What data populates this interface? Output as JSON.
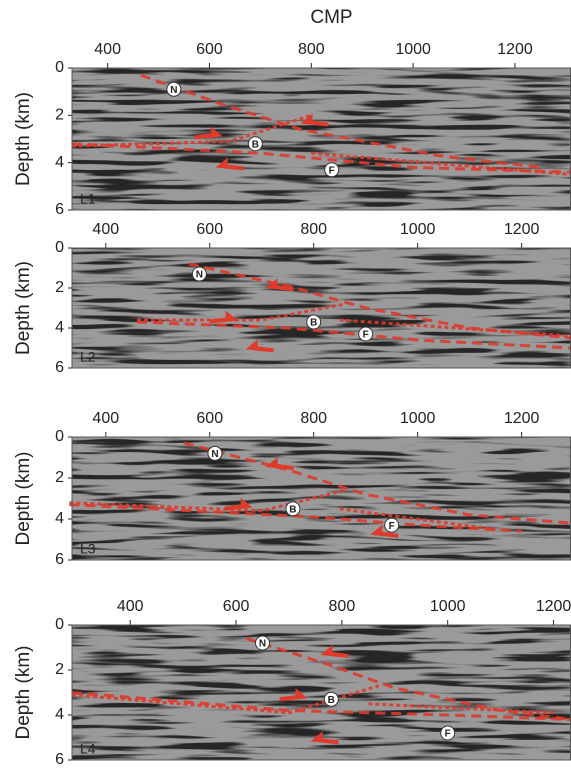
{
  "chart_data": [
    {
      "type": "seismic",
      "title": "CMP",
      "ylabel": "Depth (km)",
      "label": "L1",
      "xlim": [
        330,
        1310
      ],
      "xticks": [
        400,
        600,
        800,
        1000,
        1200
      ],
      "ylim": [
        0,
        6
      ],
      "yticks": [
        0,
        2,
        4,
        6
      ],
      "y_inverted": true,
      "series": [
        {
          "color": "#e03a2a",
          "x": [
            465,
            620,
            780,
            1050,
            1250
          ],
          "values": [
            0.3,
            1.5,
            2.6,
            3.7,
            4.2
          ]
        },
        {
          "color": "#e03a2a",
          "x": [
            330,
            640,
            800
          ],
          "values": [
            3.3,
            3.1,
            2.0
          ]
        },
        {
          "color": "#e03a2a",
          "x": [
            330,
            700,
            1000,
            1310
          ],
          "values": [
            3.2,
            3.6,
            4.2,
            4.4
          ]
        },
        {
          "color": "#e03a2a",
          "x": [
            800,
            1310
          ],
          "values": [
            3.6,
            4.5
          ]
        }
      ],
      "annotations": [
        {
          "text": "N",
          "x": 530,
          "y": 0.9
        },
        {
          "text": "B",
          "x": 690,
          "y": 3.2
        },
        {
          "text": "F",
          "x": 840,
          "y": 4.3
        }
      ]
    },
    {
      "type": "seismic",
      "ylabel": "Depth (km)",
      "label": "L2",
      "xlim": [
        335,
        1295
      ],
      "xticks": [
        400,
        600,
        800,
        1000,
        1200
      ],
      "ylim": [
        0,
        6
      ],
      "yticks": [
        0,
        2,
        4,
        6
      ],
      "y_inverted": true,
      "series": [
        {
          "color": "#e03a2a",
          "x": [
            560,
            750,
            900,
            1100,
            1295
          ],
          "values": [
            0.8,
            1.9,
            3.0,
            4.0,
            4.5
          ]
        },
        {
          "color": "#e03a2a",
          "x": [
            460,
            700,
            860
          ],
          "values": [
            3.6,
            3.6,
            2.8
          ]
        },
        {
          "color": "#e03a2a",
          "x": [
            460,
            750,
            1000,
            1295
          ],
          "values": [
            3.7,
            4.0,
            4.6,
            5.0
          ]
        },
        {
          "color": "#e03a2a",
          "x": [
            850,
            1295
          ],
          "values": [
            3.6,
            4.4
          ]
        }
      ],
      "annotations": [
        {
          "text": "N",
          "x": 580,
          "y": 1.3
        },
        {
          "text": "B",
          "x": 800,
          "y": 3.7
        },
        {
          "text": "F",
          "x": 900,
          "y": 4.3
        }
      ]
    },
    {
      "type": "seismic",
      "ylabel": "Depth (km)",
      "label": "L3",
      "xlim": [
        335,
        1295
      ],
      "xticks": [
        400,
        600,
        800,
        1000,
        1200
      ],
      "ylim": [
        0,
        6
      ],
      "yticks": [
        0,
        2,
        4,
        6
      ],
      "y_inverted": true,
      "series": [
        {
          "color": "#e03a2a",
          "x": [
            550,
            750,
            900,
            1100,
            1295
          ],
          "values": [
            0.3,
            1.6,
            2.8,
            3.8,
            4.2
          ]
        },
        {
          "color": "#e03a2a",
          "x": [
            330,
            700,
            860
          ],
          "values": [
            3.2,
            3.6,
            2.6
          ]
        },
        {
          "color": "#e03a2a",
          "x": [
            330,
            800,
            1000,
            1200
          ],
          "values": [
            3.3,
            3.9,
            4.3,
            4.6
          ]
        },
        {
          "color": "#e03a2a",
          "x": [
            850,
            1150
          ],
          "values": [
            3.5,
            4.5
          ]
        }
      ],
      "annotations": [
        {
          "text": "N",
          "x": 610,
          "y": 0.8
        },
        {
          "text": "B",
          "x": 760,
          "y": 3.5
        },
        {
          "text": "F",
          "x": 950,
          "y": 4.3
        }
      ]
    },
    {
      "type": "seismic",
      "ylabel": "Depth (km)",
      "label": "L4",
      "xlim": [
        290,
        1233
      ],
      "xticks": [
        400,
        600,
        800,
        1000,
        1200
      ],
      "ylim": [
        0,
        6
      ],
      "yticks": [
        0,
        2,
        4,
        6
      ],
      "y_inverted": true,
      "series": [
        {
          "color": "#e03a2a",
          "x": [
            620,
            780,
            900,
            1100,
            1233
          ],
          "values": [
            0.6,
            1.8,
            2.8,
            3.8,
            4.2
          ]
        },
        {
          "color": "#e03a2a",
          "x": [
            290,
            700,
            870
          ],
          "values": [
            3.1,
            3.9,
            2.7
          ]
        },
        {
          "color": "#e03a2a",
          "x": [
            290,
            700,
            1000,
            1233
          ],
          "values": [
            3.0,
            3.8,
            4.0,
            4.2
          ]
        },
        {
          "color": "#e03a2a",
          "x": [
            850,
            1200
          ],
          "values": [
            3.5,
            3.9
          ]
        }
      ],
      "annotations": [
        {
          "text": "N",
          "x": 650,
          "y": 0.8
        },
        {
          "text": "B",
          "x": 780,
          "y": 3.3
        },
        {
          "text": "F",
          "x": 1000,
          "y": 4.8
        }
      ]
    }
  ]
}
